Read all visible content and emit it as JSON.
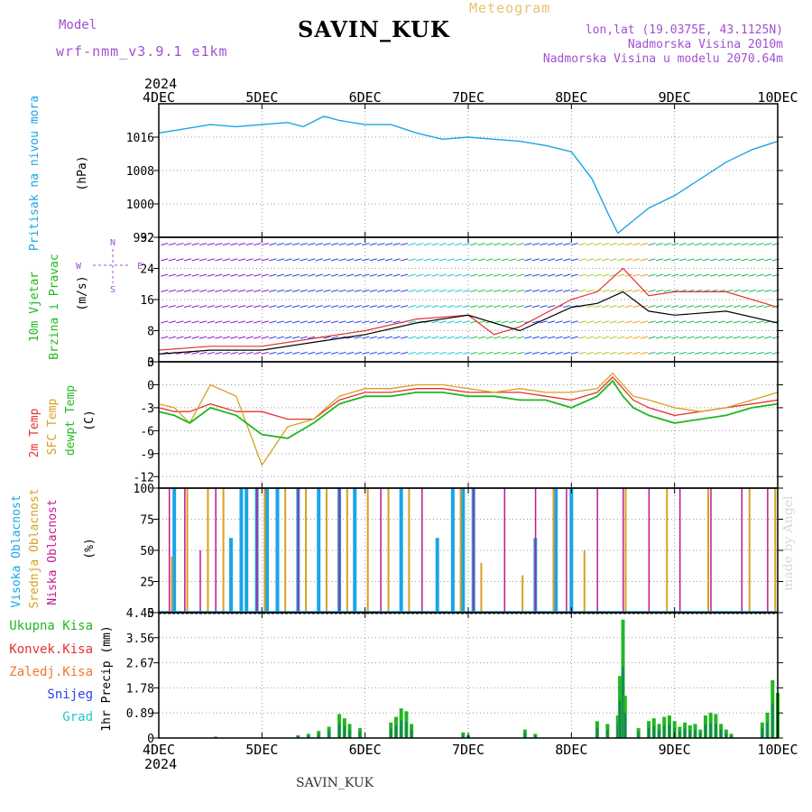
{
  "header": {
    "title": "SAVIN_KUK",
    "meteogram_label": "Meteogram",
    "model_label": "Model",
    "model_value": "wrf-nmm_v3.9.1  e1km",
    "lonlat": "lon,lat (19.0375E, 43.1125N)",
    "altitude": "Nadmorska Visina 2010m",
    "model_altitude": "Nadmorska Visina u modelu 2070.64m",
    "year_top": "2024",
    "year_bottom": "2024"
  },
  "footer": {
    "station": "SAVIN_KUK",
    "watermark": "made by Angel"
  },
  "colors": {
    "pressure": "#1aa5e8",
    "wind_label": "#20b820",
    "t2m": "#e83030",
    "tsfc": "#d8a020",
    "dewpt": "#20b820",
    "high_cloud": "#1aa5e8",
    "mid_cloud": "#d8a020",
    "low_cloud": "#c01890",
    "total_precip": "#20b820",
    "conv_precip": "#e83030",
    "frz_precip": "#f07828",
    "snow": "#3040e0",
    "graupel": "#20c8c8",
    "label_purple": "#a050d0"
  },
  "chart_data": [
    {
      "type": "line",
      "panel": "pressure",
      "ylabel_lines": [
        "Pritisak na nivou mora",
        "(hPa)"
      ],
      "yticks": [
        "992",
        "1000",
        "1008",
        "1016"
      ],
      "ylim": [
        992,
        1024
      ],
      "xticks": [
        "4DEC",
        "5DEC",
        "6DEC",
        "7DEC",
        "8DEC",
        "9DEC",
        "10DEC"
      ],
      "xlim": [
        0,
        6
      ],
      "grid": true,
      "x": [
        0,
        0.25,
        0.5,
        0.75,
        1.0,
        1.25,
        1.4,
        1.6,
        1.75,
        2.0,
        2.25,
        2.5,
        2.75,
        3.0,
        3.25,
        3.5,
        3.75,
        4.0,
        4.2,
        4.35,
        4.45,
        4.5,
        4.6,
        4.75,
        5.0,
        5.25,
        5.5,
        5.75,
        6.0
      ],
      "series": [
        {
          "values": [
            1017,
            1018,
            1019,
            1018.5,
            1019,
            1019.5,
            1018.5,
            1021,
            1020,
            1019,
            1019,
            1017,
            1015.5,
            1016,
            1015.5,
            1015,
            1014,
            1012.5,
            1006,
            998,
            993,
            994,
            996,
            999,
            1002,
            1006,
            1010,
            1013,
            1015
          ]
        }
      ]
    },
    {
      "type": "line",
      "panel": "wind",
      "ylabel_lines": [
        "10m Vjetar",
        "Brzina i Pravac",
        "(m/s)"
      ],
      "compass": [
        "N",
        "W",
        "E",
        "S"
      ],
      "yticks": [
        "0",
        "8",
        "16",
        "24",
        "32"
      ],
      "ylim": [
        0,
        32
      ],
      "xlim": [
        0,
        6
      ],
      "grid": true,
      "x": [
        0,
        0.5,
        1.0,
        1.5,
        2.0,
        2.5,
        3.0,
        3.25,
        3.5,
        4.0,
        4.25,
        4.5,
        4.75,
        5.0,
        5.5,
        6.0
      ],
      "series": [
        {
          "name": "speed",
          "values": [
            2,
            3,
            3,
            5,
            7,
            10,
            12,
            10,
            8,
            14,
            15,
            18,
            13,
            12,
            13,
            10
          ]
        },
        {
          "name": "gust",
          "values": [
            3,
            4,
            4,
            6,
            8,
            11,
            12,
            7,
            9,
            16,
            18,
            24,
            17,
            18,
            18,
            14
          ]
        }
      ]
    },
    {
      "type": "line",
      "panel": "temperature",
      "ylabel_lines": [
        "2m Temp",
        "SFC Temp",
        "dewpt Temp",
        "(C)"
      ],
      "yticks": [
        "-12",
        "-9",
        "-6",
        "-3",
        "0",
        "3"
      ],
      "ylim": [
        -13.5,
        3
      ],
      "xlim": [
        0,
        6
      ],
      "grid": true,
      "x": [
        0,
        0.15,
        0.3,
        0.5,
        0.75,
        1.0,
        1.25,
        1.5,
        1.75,
        2.0,
        2.25,
        2.5,
        2.75,
        3.0,
        3.25,
        3.5,
        3.75,
        4.0,
        4.25,
        4.4,
        4.5,
        4.6,
        4.75,
        5.0,
        5.25,
        5.5,
        5.75,
        6.0
      ],
      "series": [
        {
          "name": "2m Temp",
          "values": [
            -3,
            -3.5,
            -3.5,
            -2.5,
            -3.5,
            -3.5,
            -4.5,
            -4.5,
            -2,
            -1,
            -1,
            -0.5,
            -0.5,
            -1,
            -1,
            -1,
            -1.5,
            -2,
            -1,
            1,
            -0.5,
            -2,
            -3,
            -4,
            -3.5,
            -3,
            -2.5,
            -2
          ]
        },
        {
          "name": "SFC Temp",
          "values": [
            -2.5,
            -3,
            -5,
            0,
            -1.5,
            -10.5,
            -5.5,
            -4.5,
            -1.5,
            -0.5,
            -0.5,
            0,
            0,
            -0.5,
            -1,
            -0.5,
            -1,
            -1,
            -0.5,
            1.5,
            0,
            -1.5,
            -2,
            -3,
            -3.5,
            -3,
            -2,
            -1
          ]
        },
        {
          "name": "dewpt Temp",
          "values": [
            -3.5,
            -4,
            -5,
            -3,
            -4,
            -6.5,
            -7,
            -5,
            -2.5,
            -1.5,
            -1.5,
            -1,
            -1,
            -1.5,
            -1.5,
            -2,
            -2,
            -3,
            -1.5,
            0.5,
            -1.5,
            -3,
            -4,
            -5,
            -4.5,
            -4,
            -3,
            -2.5
          ]
        }
      ]
    },
    {
      "type": "bar",
      "panel": "clouds",
      "ylabel_lines": [
        "Visoka Oblacnost",
        "Srednja Oblacnost",
        "Niska Oblacnost",
        "(%)"
      ],
      "yticks": [
        "0",
        "25",
        "50",
        "75",
        "100"
      ],
      "ylim": [
        0,
        100
      ],
      "xlim": [
        0,
        6
      ],
      "grid": true,
      "series": [
        {
          "name": "Visoka Oblacnost",
          "x": [
            0.15,
            0.7,
            0.8,
            0.85,
            0.95,
            1.05,
            1.15,
            1.35,
            1.55,
            1.75,
            1.9,
            2.35,
            2.7,
            2.85,
            2.95,
            3.05,
            3.65,
            3.85,
            4.0
          ],
          "values": [
            100,
            60,
            100,
            100,
            100,
            100,
            100,
            100,
            100,
            100,
            100,
            100,
            60,
            100,
            100,
            100,
            60,
            100,
            100
          ]
        },
        {
          "name": "Srednja Oblacnost",
          "x": [
            0.1,
            0.25,
            0.45,
            0.6,
            1.0,
            1.2,
            1.4,
            1.6,
            1.8,
            2.0,
            2.2,
            2.4,
            2.9,
            3.1,
            3.5,
            3.8,
            4.1,
            4.5,
            4.9,
            5.3,
            5.7,
            5.95
          ],
          "values": [
            45,
            100,
            100,
            100,
            100,
            100,
            100,
            100,
            100,
            100,
            100,
            100,
            100,
            40,
            30,
            100,
            50,
            100,
            100,
            100,
            100,
            100
          ]
        },
        {
          "name": "Niska Oblacnost",
          "x": [
            0.05,
            0.2,
            0.35,
            0.5,
            0.9,
            1.3,
            1.7,
            2.1,
            2.5,
            3.0,
            3.3,
            3.6,
            3.9,
            4.2,
            4.45,
            4.7,
            5.0,
            5.3,
            5.6,
            5.85
          ],
          "values": [
            100,
            100,
            50,
            100,
            100,
            100,
            100,
            100,
            100,
            100,
            100,
            100,
            100,
            100,
            100,
            100,
            100,
            100,
            100,
            100
          ]
        }
      ]
    },
    {
      "type": "bar",
      "panel": "precipitation",
      "ylabel_lines": [
        "1hr Precip (mm)"
      ],
      "legend": [
        "Ukupna Kisa",
        "Konvek.Kisa",
        "Zaledj.Kisa",
        "Snijeg",
        "Grad"
      ],
      "yticks": [
        "0",
        "0.89",
        "1.78",
        "2.67",
        "3.56",
        "4.45"
      ],
      "ylim": [
        0,
        4.45
      ],
      "xlim": [
        0,
        6
      ],
      "grid": true,
      "series": [
        {
          "name": "Ukupna Kisa",
          "x": [
            0.55,
            1.35,
            1.45,
            1.55,
            1.65,
            1.75,
            1.8,
            1.85,
            1.95,
            2.25,
            2.3,
            2.35,
            2.4,
            2.45,
            2.95,
            3.0,
            3.55,
            3.65,
            4.25,
            4.35,
            4.45,
            4.47,
            4.5,
            4.52,
            4.65,
            4.75,
            4.8,
            4.85,
            4.9,
            4.95,
            5.0,
            5.05,
            5.1,
            5.15,
            5.2,
            5.25,
            5.3,
            5.35,
            5.4,
            5.45,
            5.5,
            5.55,
            5.85,
            5.9,
            5.95,
            6.0
          ],
          "values": [
            0.05,
            0.1,
            0.15,
            0.25,
            0.4,
            0.85,
            0.7,
            0.5,
            0.35,
            0.55,
            0.75,
            1.05,
            0.95,
            0.5,
            0.2,
            0.1,
            0.3,
            0.15,
            0.6,
            0.5,
            0.8,
            2.2,
            4.2,
            1.5,
            0.35,
            0.6,
            0.7,
            0.5,
            0.75,
            0.8,
            0.6,
            0.4,
            0.55,
            0.45,
            0.5,
            0.3,
            0.8,
            0.9,
            0.85,
            0.5,
            0.3,
            0.15,
            0.55,
            0.9,
            2.05,
            1.6
          ]
        }
      ]
    }
  ]
}
